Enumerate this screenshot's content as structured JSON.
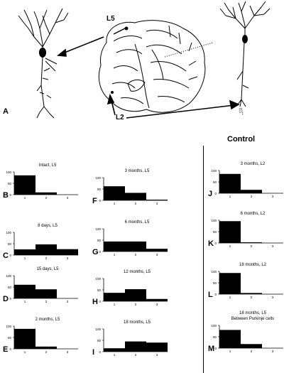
{
  "labels": {
    "panel_a": "A",
    "callout_l5": "L5",
    "callout_l2": "L2",
    "control": "Control"
  },
  "chart_data": [
    {
      "type": "bar",
      "panel": "B",
      "title": "Intact, L5",
      "categories": [
        "1",
        "2",
        "3"
      ],
      "values": [
        85,
        10,
        0
      ],
      "ylim": [
        0,
        100
      ],
      "yticks": [
        "100",
        "50",
        "0"
      ]
    },
    {
      "type": "bar",
      "panel": "C",
      "title": "8 days, L5",
      "categories": [
        "1",
        "2",
        "3"
      ],
      "values": [
        25,
        47,
        26
      ],
      "ylim": [
        0,
        100
      ],
      "yticks": [
        "100",
        "50",
        "0"
      ]
    },
    {
      "type": "bar",
      "panel": "D",
      "title": "15 days, L5",
      "categories": [
        "1",
        "2",
        "3"
      ],
      "values": [
        60,
        40,
        0
      ],
      "ylim": [
        0,
        100
      ],
      "yticks": [
        "100",
        "50",
        "0"
      ]
    },
    {
      "type": "bar",
      "panel": "E",
      "title": "2 months, L5",
      "categories": [
        "1",
        "2",
        "3"
      ],
      "values": [
        88,
        10,
        0
      ],
      "ylim": [
        0,
        100
      ],
      "yticks": [
        "100",
        "50",
        "0"
      ]
    },
    {
      "type": "bar",
      "panel": "F",
      "title": "3 months, L5",
      "categories": [
        "1",
        "2",
        "3"
      ],
      "values": [
        62,
        33,
        3
      ],
      "ylim": [
        0,
        100
      ],
      "yticks": [
        "100",
        "50",
        "0"
      ]
    },
    {
      "type": "bar",
      "panel": "G",
      "title": "6 months, L5",
      "categories": [
        "1",
        "2",
        "3"
      ],
      "values": [
        44,
        44,
        12
      ],
      "ylim": [
        0,
        100
      ],
      "yticks": [
        "100",
        "50",
        "0"
      ]
    },
    {
      "type": "bar",
      "panel": "H",
      "title": "12 months, L5",
      "categories": [
        "1",
        "2",
        "3"
      ],
      "values": [
        37,
        53,
        10
      ],
      "ylim": [
        0,
        100
      ],
      "yticks": [
        "100",
        "50",
        "0"
      ]
    },
    {
      "type": "bar",
      "panel": "I",
      "title": "18 months, L5",
      "categories": [
        "1",
        "2",
        "3"
      ],
      "values": [
        15,
        45,
        40
      ],
      "ylim": [
        0,
        100
      ],
      "yticks": [
        "100",
        "50",
        "0"
      ]
    },
    {
      "type": "bar",
      "panel": "J",
      "title": "3 months, L2",
      "categories": [
        "1",
        "2",
        "3"
      ],
      "values": [
        85,
        15,
        0
      ],
      "ylim": [
        0,
        100
      ],
      "yticks": [
        "100",
        "50",
        "0"
      ]
    },
    {
      "type": "bar",
      "panel": "K",
      "title": "6 months, L2",
      "categories": [
        "1",
        "2",
        "3"
      ],
      "values": [
        96,
        3,
        0
      ],
      "ylim": [
        0,
        100
      ],
      "yticks": [
        "100",
        "50",
        "0"
      ]
    },
    {
      "type": "bar",
      "panel": "L",
      "title": "18 months, L2",
      "categories": [
        "1",
        "2",
        "3"
      ],
      "values": [
        93,
        5,
        0
      ],
      "ylim": [
        0,
        100
      ],
      "yticks": [
        "100",
        "50",
        "0"
      ]
    },
    {
      "type": "bar",
      "panel": "M",
      "title": "18 months, L5\nBetween Purkinje cells",
      "categories": [
        "1",
        "2",
        "3"
      ],
      "values": [
        80,
        18,
        0
      ],
      "ylim": [
        0,
        100
      ],
      "yticks": [
        "100",
        "50",
        "0"
      ]
    }
  ]
}
